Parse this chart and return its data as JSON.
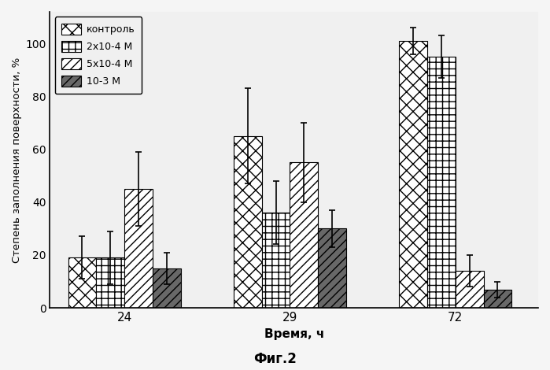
{
  "groups": [
    "24",
    "29",
    "72"
  ],
  "series": [
    {
      "label": "контроль",
      "values": [
        19,
        65,
        101
      ],
      "errors": [
        8,
        18,
        5
      ],
      "hatch": "xx",
      "facecolor": "#ffffff",
      "edgecolor": "#000000"
    },
    {
      "label": "2х10-4 М",
      "values": [
        19,
        36,
        95
      ],
      "errors": [
        10,
        12,
        8
      ],
      "hatch": "++",
      "facecolor": "#ffffff",
      "edgecolor": "#000000"
    },
    {
      "label": "5х10-4 М",
      "values": [
        45,
        55,
        14
      ],
      "errors": [
        14,
        15,
        6
      ],
      "hatch": "///",
      "facecolor": "#ffffff",
      "edgecolor": "#000000"
    },
    {
      "label": "10-3 М",
      "values": [
        15,
        30,
        7
      ],
      "errors": [
        6,
        7,
        3
      ],
      "hatch": "///",
      "facecolor": "#707070",
      "edgecolor": "#000000"
    }
  ],
  "xlabel": "Время, ч",
  "ylabel": "Степень заполнения поверхности, %",
  "ylim": [
    0,
    112
  ],
  "yticks": [
    0,
    20,
    40,
    60,
    80,
    100
  ],
  "figcaption": "Фиг.2",
  "bar_width": 0.17,
  "group_positions": [
    0.35,
    1.35,
    2.35
  ],
  "background_color": "#f0f0f0",
  "legend_labels": [
    "контроль",
    "2х10-4 М",
    "5х10-4 М",
    "10-3 М"
  ]
}
